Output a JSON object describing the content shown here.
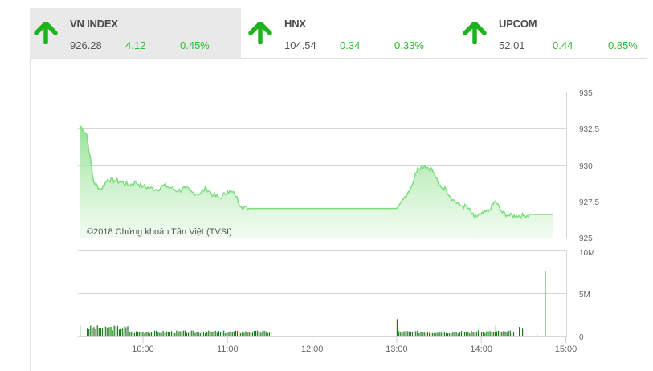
{
  "indices": [
    {
      "name": "VN INDEX",
      "price": "926.28",
      "change": "4.12",
      "percent": "0.45%",
      "direction": "up",
      "active": true
    },
    {
      "name": "HNX",
      "price": "104.54",
      "change": "0.34",
      "percent": "0.33%",
      "direction": "up",
      "active": false
    },
    {
      "name": "UPCOM",
      "price": "52.01",
      "change": "0.44",
      "percent": "0.85%",
      "direction": "up",
      "active": false
    }
  ],
  "colors": {
    "up": "#2eb82e",
    "arrow": "#1db31d",
    "line": "#7ddc7d",
    "volume": "#1a7a1a",
    "tab_active_bg": "#e9e9e9"
  },
  "credit": "©2018 Chứng khoán Tân Việt (TVSI)",
  "chart_data": [
    {
      "type": "area",
      "title": "VN INDEX intraday",
      "xlabel": "",
      "ylabel": "",
      "ylim": [
        925,
        935
      ],
      "y_ticks": [
        "935",
        "932.5",
        "930",
        "927.5",
        "925"
      ],
      "y_axis_position": "right",
      "grid": true,
      "x": [
        "09:15",
        "09:20",
        "09:25",
        "09:30",
        "09:35",
        "09:40",
        "09:45",
        "09:50",
        "09:55",
        "10:00",
        "10:05",
        "10:10",
        "10:15",
        "10:20",
        "10:25",
        "10:30",
        "10:35",
        "10:40",
        "10:45",
        "10:50",
        "10:55",
        "11:00",
        "11:05",
        "11:10",
        "11:15",
        "11:20",
        "11:25",
        "11:30",
        "13:00",
        "13:05",
        "13:10",
        "13:15",
        "13:20",
        "13:25",
        "13:30",
        "13:35",
        "13:40",
        "13:45",
        "13:50",
        "13:55",
        "14:00",
        "14:05",
        "14:10",
        "14:15",
        "14:20",
        "14:25",
        "14:30",
        "14:35",
        "14:40",
        "14:45"
      ],
      "values": [
        932.7,
        932.1,
        928.8,
        928.3,
        929.0,
        928.9,
        928.8,
        928.6,
        928.8,
        928.5,
        928.4,
        928.3,
        928.6,
        928.4,
        928.2,
        928.4,
        928.1,
        928.0,
        928.4,
        927.9,
        927.7,
        928.2,
        928.0,
        927.1,
        927.0,
        927.0,
        927.0,
        927.0,
        927.0,
        927.7,
        928.4,
        929.8,
        929.9,
        929.7,
        928.6,
        928.3,
        927.6,
        927.2,
        927.1,
        926.4,
        926.6,
        926.8,
        927.5,
        926.7,
        926.5,
        926.5,
        926.5,
        926.6,
        926.6,
        926.6
      ]
    },
    {
      "type": "bar",
      "title": "Volume",
      "ylim": [
        0,
        10000000
      ],
      "y_ticks": [
        "10M",
        "5M",
        "0"
      ],
      "y_axis_position": "right",
      "x_ticks": [
        "10:00",
        "11:00",
        "12:00",
        "13:00",
        "14:00",
        "15:00"
      ],
      "notable": [
        {
          "time": "09:15",
          "value": 1300000
        },
        {
          "time": "13:00",
          "value": 2000000
        },
        {
          "time": "14:10",
          "value": 1300000
        },
        {
          "time": "14:45",
          "value": 7500000
        }
      ],
      "typical_value": 600000
    }
  ]
}
